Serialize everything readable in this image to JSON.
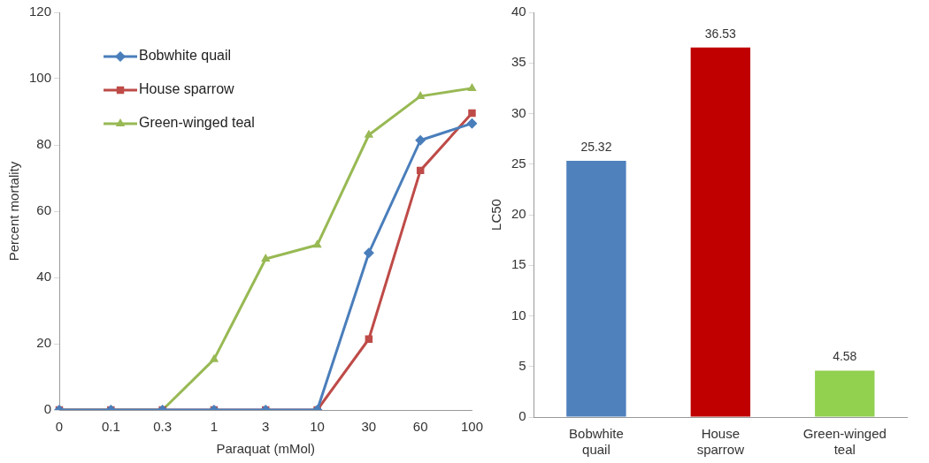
{
  "chart_data": [
    {
      "type": "line",
      "xlabel": "Paraquat (mMol)",
      "ylabel": "Percent mortality",
      "categories": [
        "0",
        "0.1",
        "0.3",
        "1",
        "3",
        "10",
        "30",
        "60",
        "100"
      ],
      "ylim": [
        0,
        120
      ],
      "yticks": [
        0,
        20,
        40,
        60,
        80,
        100,
        120
      ],
      "grid": false,
      "legend": "top left",
      "line_style": "solid",
      "series": [
        {
          "name": "Bobwhite quail",
          "color": "#4a7ebb",
          "marker": "diamond",
          "values": [
            0,
            0,
            0,
            0,
            0,
            0,
            47.4,
            81.4,
            86.5
          ]
        },
        {
          "name": "House sparrow",
          "color": "#be4b48",
          "marker": "square",
          "values": [
            0,
            0,
            0,
            0,
            0,
            0,
            21.4,
            72.3,
            89.6
          ]
        },
        {
          "name": "Green-winged teal",
          "color": "#98b954",
          "marker": "triangle",
          "values": [
            0,
            0,
            0,
            15.3,
            45.6,
            49.8,
            83.0,
            94.7,
            97.1
          ]
        }
      ]
    },
    {
      "type": "bar",
      "ylabel": "LC50",
      "categories": [
        "Bobwhite quail",
        "House sparrow",
        "Green-winged teal"
      ],
      "values": [
        25.32,
        36.53,
        4.58
      ],
      "colors": [
        "#4f81bd",
        "#c00000",
        "#92d050"
      ],
      "ylim": [
        0,
        40
      ],
      "yticks": [
        0,
        5,
        10,
        15,
        20,
        25,
        30,
        35,
        40
      ],
      "grid": false,
      "legend": false,
      "data_labels": true
    }
  ]
}
